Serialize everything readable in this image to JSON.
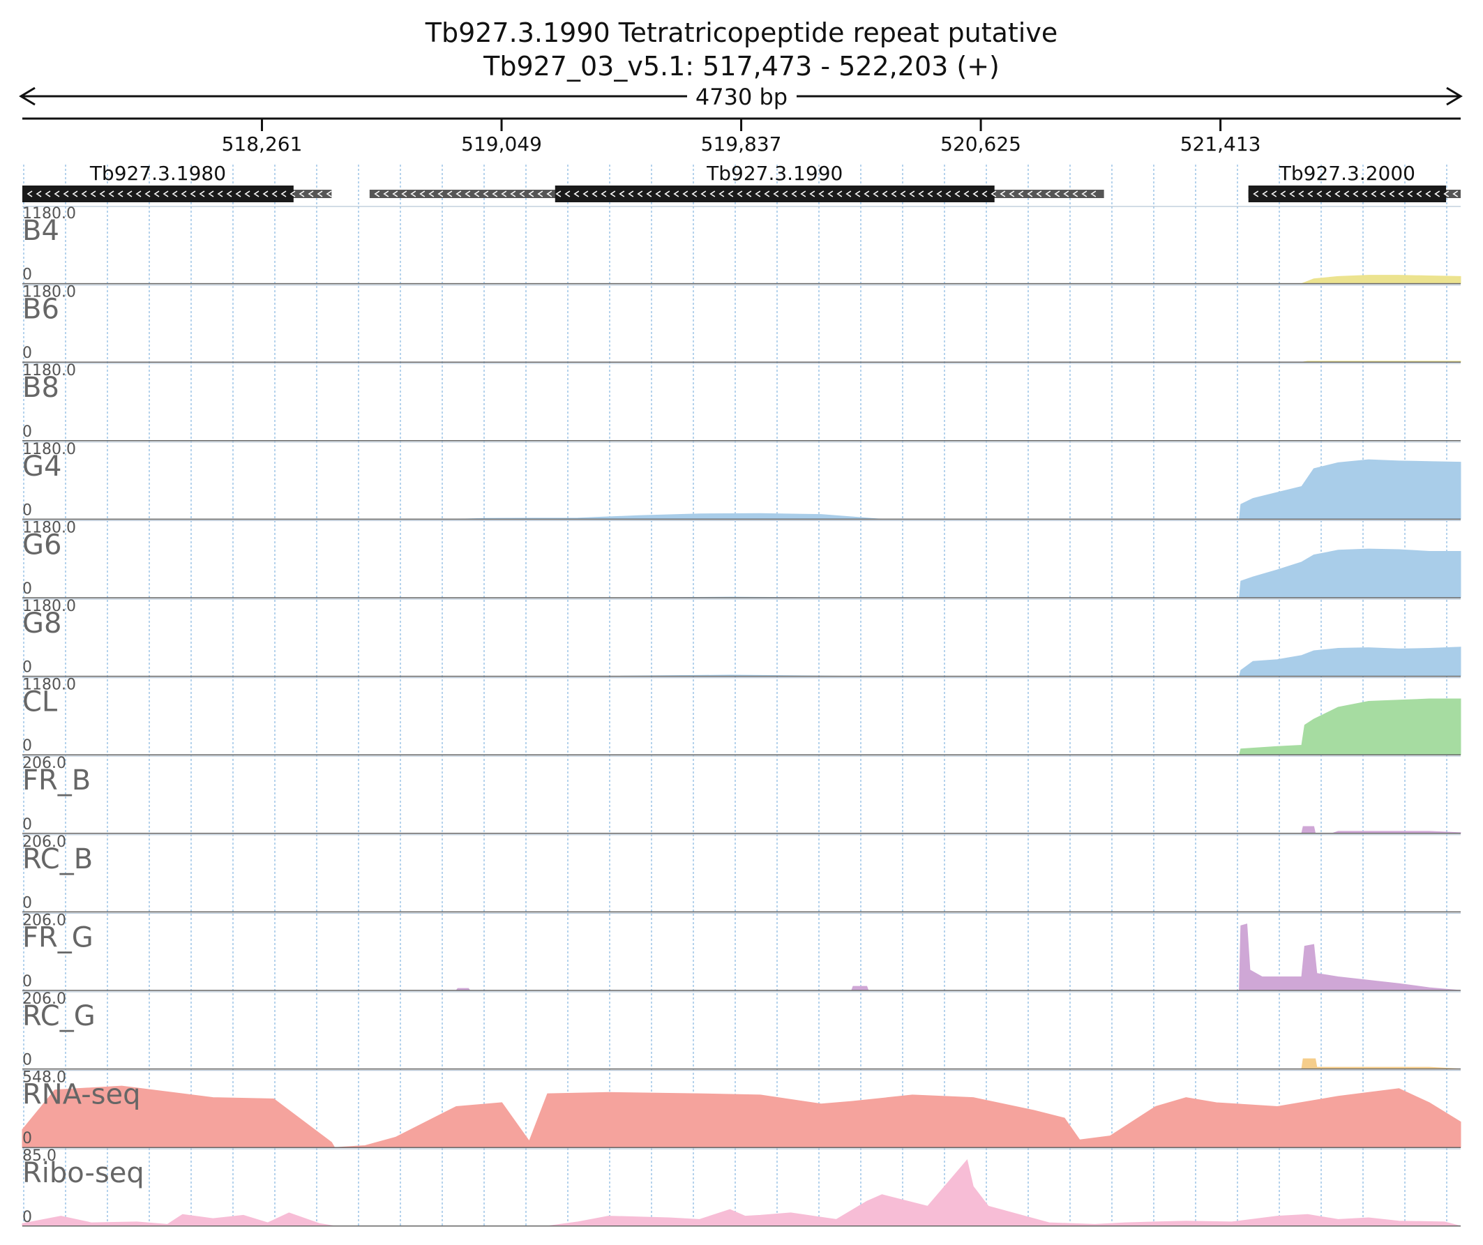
{
  "chart_data": {
    "type": "area",
    "title": "Tb927.3.1990  Tetratricopeptide repeat  putative",
    "subtitle": "Tb927_03_v5.1: 517,473 - 522,203 (+)",
    "span_label": "4730 bp",
    "x_range": [
      517473,
      522203
    ],
    "x_ticks": [
      518261,
      519049,
      519837,
      520625,
      521413
    ],
    "x_tick_labels": [
      "518,261",
      "519,049",
      "519,837",
      "520,625",
      "521,413"
    ],
    "genes": [
      {
        "name": "Tb927.3.1980",
        "strand": "-",
        "start": 517473,
        "end": 518490,
        "cds": [
          517473,
          518365
        ]
      },
      {
        "name": "Tb927.3.1990",
        "strand": "-",
        "start": 518615,
        "end": 521030,
        "cds": [
          519225,
          520670
        ]
      },
      {
        "name": "Tb927.3.2000",
        "strand": "-",
        "start": 521505,
        "end": 522203,
        "cds": [
          521505,
          522155
        ]
      }
    ],
    "tracks": [
      {
        "name": "B4",
        "max_label": "1180.0",
        "min_label": "0",
        "max": 1180,
        "color": "#ece38f",
        "x": [
          517473,
          521680,
          521720,
          521800,
          521900,
          522000,
          522100,
          522203
        ],
        "y": [
          0,
          0,
          80,
          120,
          140,
          140,
          130,
          120
        ]
      },
      {
        "name": "B6",
        "max_label": "1180.0",
        "min_label": "0",
        "max": 1180,
        "color": "#ece38f",
        "x": [
          517473,
          521680,
          521700,
          522203
        ],
        "y": [
          0,
          0,
          15,
          15
        ]
      },
      {
        "name": "B8",
        "max_label": "1180.0",
        "min_label": "0",
        "max": 1180,
        "color": "#ece38f",
        "x": [
          517473,
          522203
        ],
        "y": [
          0,
          0
        ]
      },
      {
        "name": "G4",
        "max_label": "1180.0",
        "min_label": "0",
        "max": 1180,
        "color": "#a9cde9",
        "x": [
          517473,
          518900,
          519000,
          519300,
          519500,
          519700,
          519900,
          520100,
          520200,
          520300,
          521475,
          521480,
          521520,
          521600,
          521680,
          521720,
          521800,
          521900,
          522000,
          522100,
          522203
        ],
        "y": [
          0,
          0,
          15,
          20,
          60,
          90,
          95,
          80,
          40,
          0,
          0,
          250,
          350,
          450,
          550,
          850,
          950,
          1000,
          980,
          970,
          960
        ]
      },
      {
        "name": "G6",
        "max_label": "1180.0",
        "min_label": "0",
        "max": 1180,
        "color": "#a9cde9",
        "x": [
          517473,
          519500,
          519800,
          520100,
          521475,
          521480,
          521520,
          521600,
          521680,
          521720,
          521800,
          521900,
          522000,
          522100,
          522203
        ],
        "y": [
          0,
          0,
          10,
          0,
          0,
          280,
          350,
          470,
          600,
          720,
          800,
          820,
          810,
          780,
          780
        ]
      },
      {
        "name": "G8",
        "max_label": "1180.0",
        "min_label": "0",
        "max": 1180,
        "color": "#a9cde9",
        "x": [
          517473,
          519400,
          519800,
          520200,
          521475,
          521480,
          521520,
          521600,
          521680,
          521720,
          521800,
          521900,
          522000,
          522100,
          522203
        ],
        "y": [
          0,
          0,
          20,
          0,
          0,
          100,
          250,
          280,
          350,
          430,
          470,
          480,
          460,
          470,
          490
        ]
      },
      {
        "name": "CL",
        "max_label": "1180.0",
        "min_label": "0",
        "max": 1180,
        "color": "#a6dca1",
        "x": [
          517473,
          521475,
          521480,
          521600,
          521680,
          521690,
          521720,
          521800,
          521900,
          522000,
          522100,
          522203
        ],
        "y": [
          0,
          0,
          100,
          140,
          160,
          500,
          600,
          800,
          900,
          920,
          940,
          940
        ]
      },
      {
        "name": "FR_B",
        "max_label": "206.0",
        "min_label": "0",
        "max": 206,
        "color": "#cfa7d6",
        "x": [
          517473,
          521680,
          521685,
          521720,
          521725,
          521780,
          521800,
          522100,
          522203
        ],
        "y": [
          0,
          0,
          20,
          20,
          0,
          0,
          6,
          6,
          2
        ]
      },
      {
        "name": "RC_B",
        "max_label": "206.0",
        "min_label": "0",
        "max": 206,
        "color": "#f5cd8b",
        "x": [
          517473,
          522203
        ],
        "y": [
          0,
          0
        ]
      },
      {
        "name": "FR_G",
        "max_label": "206.0",
        "min_label": "0",
        "max": 206,
        "color": "#cfa7d6",
        "x": [
          517473,
          518900,
          518905,
          518940,
          518945,
          520200,
          520205,
          520250,
          520255,
          521475,
          521480,
          521500,
          521510,
          521550,
          521600,
          521680,
          521690,
          521720,
          521730,
          521800,
          521900,
          522000,
          522100,
          522203
        ],
        "y": [
          0,
          0,
          6,
          6,
          0,
          0,
          12,
          12,
          0,
          0,
          190,
          195,
          60,
          40,
          40,
          40,
          130,
          135,
          50,
          40,
          30,
          20,
          8,
          0
        ]
      },
      {
        "name": "RC_G",
        "max_label": "206.0",
        "min_label": "0",
        "max": 206,
        "color": "#f5cd8b",
        "x": [
          517473,
          521680,
          521685,
          521725,
          521730,
          522100,
          522203
        ],
        "y": [
          0,
          0,
          30,
          30,
          5,
          5,
          0
        ]
      },
      {
        "name": "RNA-seq",
        "max_label": "548.0",
        "min_label": "0",
        "max": 548,
        "color": "#f5a39d",
        "x": [
          517473,
          517580,
          517800,
          518100,
          518300,
          518490,
          518500,
          518600,
          518700,
          518900,
          519050,
          519140,
          519200,
          519400,
          519700,
          519900,
          520100,
          520200,
          520400,
          520600,
          520800,
          520900,
          520950,
          521050,
          521200,
          521300,
          521400,
          521600,
          521800,
          522000,
          522100,
          522203
        ],
        "y": [
          140,
          450,
          480,
          390,
          380,
          40,
          0,
          15,
          80,
          320,
          350,
          50,
          420,
          430,
          420,
          410,
          340,
          360,
          410,
          390,
          290,
          230,
          60,
          90,
          320,
          390,
          350,
          320,
          400,
          460,
          350,
          200
        ]
      },
      {
        "name": "Ribo-seq",
        "max_label": "85.0",
        "min_label": "0",
        "max": 85,
        "color": "#f7bdd6",
        "x": [
          517473,
          517600,
          517700,
          517850,
          517950,
          518000,
          518100,
          518200,
          518280,
          518350,
          518450,
          518500,
          519200,
          519300,
          519400,
          519600,
          519700,
          519800,
          519850,
          519900,
          520000,
          520150,
          520250,
          520300,
          520450,
          520580,
          520600,
          520650,
          520750,
          520850,
          521000,
          521100,
          521300,
          521450,
          521600,
          521700,
          521800,
          521900,
          522000,
          522150,
          522203
        ],
        "y": [
          3,
          12,
          4,
          5,
          2,
          14,
          9,
          13,
          4,
          16,
          3,
          0,
          0,
          5,
          12,
          10,
          8,
          20,
          12,
          13,
          16,
          8,
          30,
          38,
          24,
          80,
          48,
          24,
          14,
          4,
          2,
          4,
          6,
          5,
          12,
          14,
          8,
          10,
          6,
          5,
          0
        ]
      }
    ]
  }
}
